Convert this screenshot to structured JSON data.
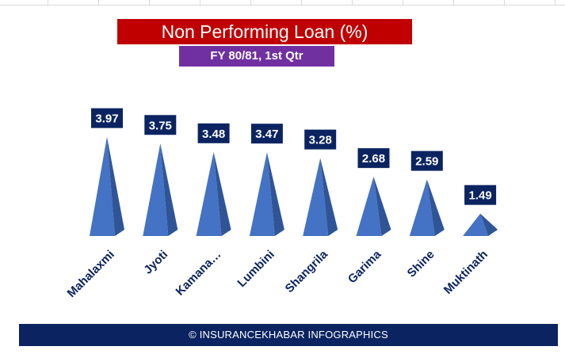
{
  "chart_data": {
    "type": "bar",
    "style": "pyramid",
    "title": "Non Performing Loan (%)",
    "subtitle": "FY 80/81, 1st Qtr",
    "categories": [
      "Mahalaxmi",
      "Jyoti",
      "Kamana…",
      "Lumbini",
      "Shangrila",
      "Garima",
      "Shine",
      "Muktinath"
    ],
    "values": [
      3.97,
      3.75,
      3.48,
      3.47,
      3.28,
      2.68,
      2.59,
      1.49
    ],
    "data_labels": [
      "3.97",
      "3.75",
      "3.48",
      "3.47",
      "3.28",
      "2.68",
      "2.59",
      "1.49"
    ],
    "ylim": [
      0,
      4.6
    ],
    "grid": false,
    "legend": "none",
    "colors": {
      "bar_front": "#4472c4",
      "bar_side": "#2f5597",
      "label_box": "#0b2461",
      "category_text": "#0b2461",
      "title_bg": "#c00000",
      "subtitle_bg": "#7030a0",
      "footer_bg": "#0b2461"
    }
  },
  "footer": {
    "text": "© INSURANCEKHABAR INFOGRAPHICS"
  }
}
